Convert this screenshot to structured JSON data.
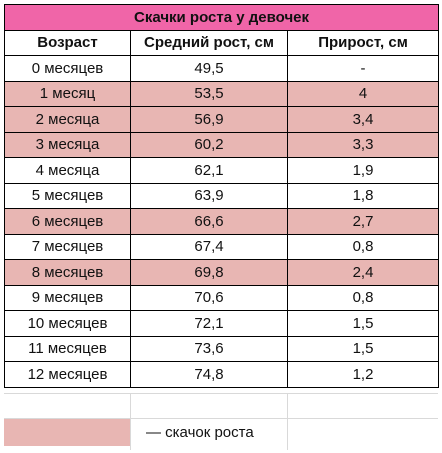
{
  "table": {
    "title": "Скачки роста у девочек",
    "headers": [
      "Возраст",
      "Средний рост, см",
      "Прирост, см"
    ],
    "rows": [
      {
        "age": "0 месяцев",
        "height": "49,5",
        "gain": "-",
        "spurt": false
      },
      {
        "age": "1 месяц",
        "height": "53,5",
        "gain": "4",
        "spurt": true
      },
      {
        "age": "2 месяца",
        "height": "56,9",
        "gain": "3,4",
        "spurt": true
      },
      {
        "age": "3 месяца",
        "height": "60,2",
        "gain": "3,3",
        "spurt": true
      },
      {
        "age": "4 месяца",
        "height": "62,1",
        "gain": "1,9",
        "spurt": false
      },
      {
        "age": "5 месяцев",
        "height": "63,9",
        "gain": "1,8",
        "spurt": false
      },
      {
        "age": "6 месяцев",
        "height": "66,6",
        "gain": "2,7",
        "spurt": true
      },
      {
        "age": "7 месяцев",
        "height": "67,4",
        "gain": "0,8",
        "spurt": false
      },
      {
        "age": "8 месяцев",
        "height": "69,8",
        "gain": "2,4",
        "spurt": true
      },
      {
        "age": "9 месяцев",
        "height": "70,6",
        "gain": "0,8",
        "spurt": false
      },
      {
        "age": "10 месяцев",
        "height": "72,1",
        "gain": "1,5",
        "spurt": false
      },
      {
        "age": "11 месяцев",
        "height": "73,6",
        "gain": "1,5",
        "spurt": false
      },
      {
        "age": "12 месяцев",
        "height": "74,8",
        "gain": "1,2",
        "spurt": false
      }
    ]
  },
  "legend": {
    "label": "— скачок роста"
  },
  "colors": {
    "title_bg": "#f065a8",
    "spurt_bg": "#e8b6b3"
  }
}
